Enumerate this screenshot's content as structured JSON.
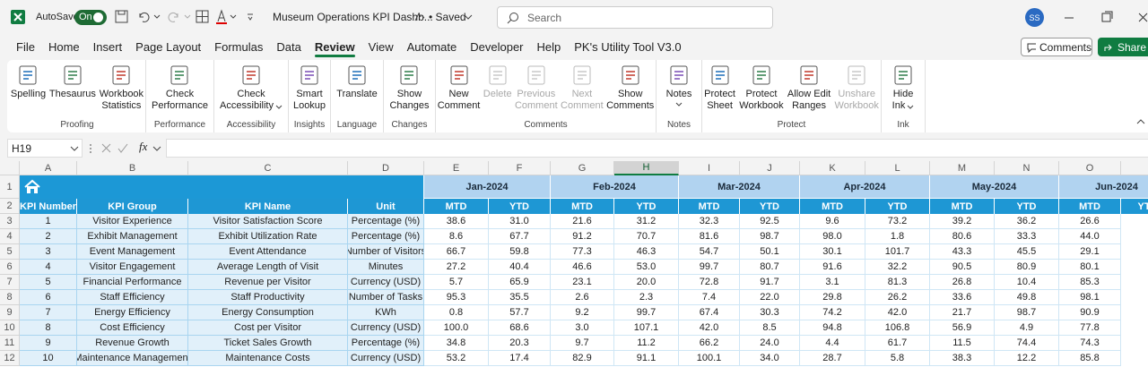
{
  "titlebar": {
    "autosave": "AutoSave",
    "toggle": "On",
    "filename": "Museum Operations KPI Dashb...",
    "saved": "• Saved",
    "search": "Search",
    "avatar": "SS"
  },
  "menu": {
    "tabs": [
      "File",
      "Home",
      "Insert",
      "Page Layout",
      "Formulas",
      "Data",
      "Review",
      "View",
      "Automate",
      "Developer",
      "Help",
      "PK's Utility Tool V3.0"
    ],
    "active": 6,
    "comments": "Comments",
    "share": "Share"
  },
  "ribbon": {
    "groups": [
      {
        "label": "Proofing",
        "buttons": [
          {
            "lines": [
              "Spelling"
            ]
          },
          {
            "lines": [
              "Thesaurus"
            ]
          },
          {
            "lines": [
              "Workbook",
              "Statistics"
            ]
          }
        ]
      },
      {
        "label": "Performance",
        "buttons": [
          {
            "lines": [
              "Check",
              "Performance"
            ]
          }
        ]
      },
      {
        "label": "Accessibility",
        "buttons": [
          {
            "lines": [
              "Check",
              "Accessibility"
            ],
            "dropdown": true
          }
        ]
      },
      {
        "label": "Insights",
        "buttons": [
          {
            "lines": [
              "Smart",
              "Lookup"
            ]
          }
        ]
      },
      {
        "label": "Language",
        "buttons": [
          {
            "lines": [
              "Translate"
            ]
          }
        ]
      },
      {
        "label": "Changes",
        "buttons": [
          {
            "lines": [
              "Show",
              "Changes"
            ]
          }
        ]
      },
      {
        "label": "Comments",
        "buttons": [
          {
            "lines": [
              "New",
              "Comment"
            ]
          },
          {
            "lines": [
              "Delete"
            ],
            "disabled": true
          },
          {
            "lines": [
              "Previous",
              "Comment"
            ],
            "disabled": true
          },
          {
            "lines": [
              "Next",
              "Comment"
            ],
            "disabled": true
          },
          {
            "lines": [
              "Show",
              "Comments"
            ]
          }
        ]
      },
      {
        "label": "Notes",
        "buttons": [
          {
            "lines": [
              "Notes"
            ],
            "dropdown": true
          }
        ]
      },
      {
        "label": "Protect",
        "buttons": [
          {
            "lines": [
              "Protect",
              "Sheet"
            ]
          },
          {
            "lines": [
              "Protect",
              "Workbook"
            ]
          },
          {
            "lines": [
              "Allow Edit",
              "Ranges"
            ]
          },
          {
            "lines": [
              "Unshare",
              "Workbook"
            ],
            "disabled": true
          }
        ]
      },
      {
        "label": "Ink",
        "buttons": [
          {
            "lines": [
              "Hide",
              "Ink"
            ],
            "dropdown": true
          }
        ]
      }
    ]
  },
  "formula_bar": {
    "name_box": "H19",
    "fx": "fx"
  },
  "sheet": {
    "columns": [
      "A",
      "B",
      "C",
      "D",
      "E",
      "F",
      "G",
      "H",
      "I",
      "J",
      "K",
      "L",
      "M",
      "N",
      "O"
    ],
    "selected_column": "H",
    "row_numbers": [
      "1",
      "2",
      "3",
      "4",
      "5",
      "6",
      "7",
      "8",
      "9",
      "10",
      "11",
      "12"
    ],
    "months": [
      "Jan-2024",
      "Feb-2024",
      "Mar-2024",
      "Apr-2024",
      "May-2024",
      "Jun-2024"
    ],
    "header": [
      "KPI Number",
      "KPI Group",
      "KPI Name",
      "Unit",
      "MTD",
      "YTD",
      "MTD",
      "YTD",
      "MTD",
      "YTD",
      "MTD",
      "YTD",
      "MTD",
      "YTD",
      "MTD",
      "YTD"
    ],
    "rows": [
      [
        "1",
        "Visitor Experience",
        "Visitor Satisfaction Score",
        "Percentage (%)",
        "38.6",
        "31.0",
        "21.6",
        "31.2",
        "32.3",
        "92.5",
        "9.6",
        "73.2",
        "39.2",
        "36.2",
        "26.6"
      ],
      [
        "2",
        "Exhibit Management",
        "Exhibit Utilization Rate",
        "Percentage (%)",
        "8.6",
        "67.7",
        "91.2",
        "70.7",
        "81.6",
        "98.7",
        "98.0",
        "1.8",
        "80.6",
        "33.3",
        "44.0"
      ],
      [
        "3",
        "Event Management",
        "Event Attendance",
        "Number of Visitors",
        "66.7",
        "59.8",
        "77.3",
        "46.3",
        "54.7",
        "50.1",
        "30.1",
        "101.7",
        "43.3",
        "45.5",
        "29.1"
      ],
      [
        "4",
        "Visitor Engagement",
        "Average Length of Visit",
        "Minutes",
        "27.2",
        "40.4",
        "46.6",
        "53.0",
        "99.7",
        "80.7",
        "91.6",
        "32.2",
        "90.5",
        "80.9",
        "80.1"
      ],
      [
        "5",
        "Financial Performance",
        "Revenue per Visitor",
        "Currency (USD)",
        "5.7",
        "65.9",
        "23.1",
        "20.0",
        "72.8",
        "91.7",
        "3.1",
        "81.3",
        "26.8",
        "10.4",
        "85.3"
      ],
      [
        "6",
        "Staff Efficiency",
        "Staff Productivity",
        "Number of Tasks",
        "95.3",
        "35.5",
        "2.6",
        "2.3",
        "7.4",
        "22.0",
        "29.8",
        "26.2",
        "33.6",
        "49.8",
        "98.1"
      ],
      [
        "7",
        "Energy Efficiency",
        "Energy Consumption",
        "KWh",
        "0.8",
        "57.7",
        "9.2",
        "99.7",
        "67.4",
        "30.3",
        "74.2",
        "42.0",
        "21.7",
        "98.7",
        "90.9"
      ],
      [
        "8",
        "Cost Efficiency",
        "Cost per Visitor",
        "Currency (USD)",
        "100.0",
        "68.6",
        "3.0",
        "107.1",
        "42.0",
        "8.5",
        "94.8",
        "106.8",
        "56.9",
        "4.9",
        "77.8"
      ],
      [
        "9",
        "Revenue Growth",
        "Ticket Sales Growth",
        "Percentage (%)",
        "34.8",
        "20.3",
        "9.7",
        "11.2",
        "66.2",
        "24.0",
        "4.4",
        "61.7",
        "11.5",
        "74.4",
        "74.3"
      ],
      [
        "10",
        "Maintenance Management",
        "Maintenance Costs",
        "Currency (USD)",
        "53.2",
        "17.4",
        "82.9",
        "91.1",
        "100.1",
        "34.0",
        "28.7",
        "5.8",
        "38.3",
        "12.2",
        "85.8"
      ]
    ]
  }
}
